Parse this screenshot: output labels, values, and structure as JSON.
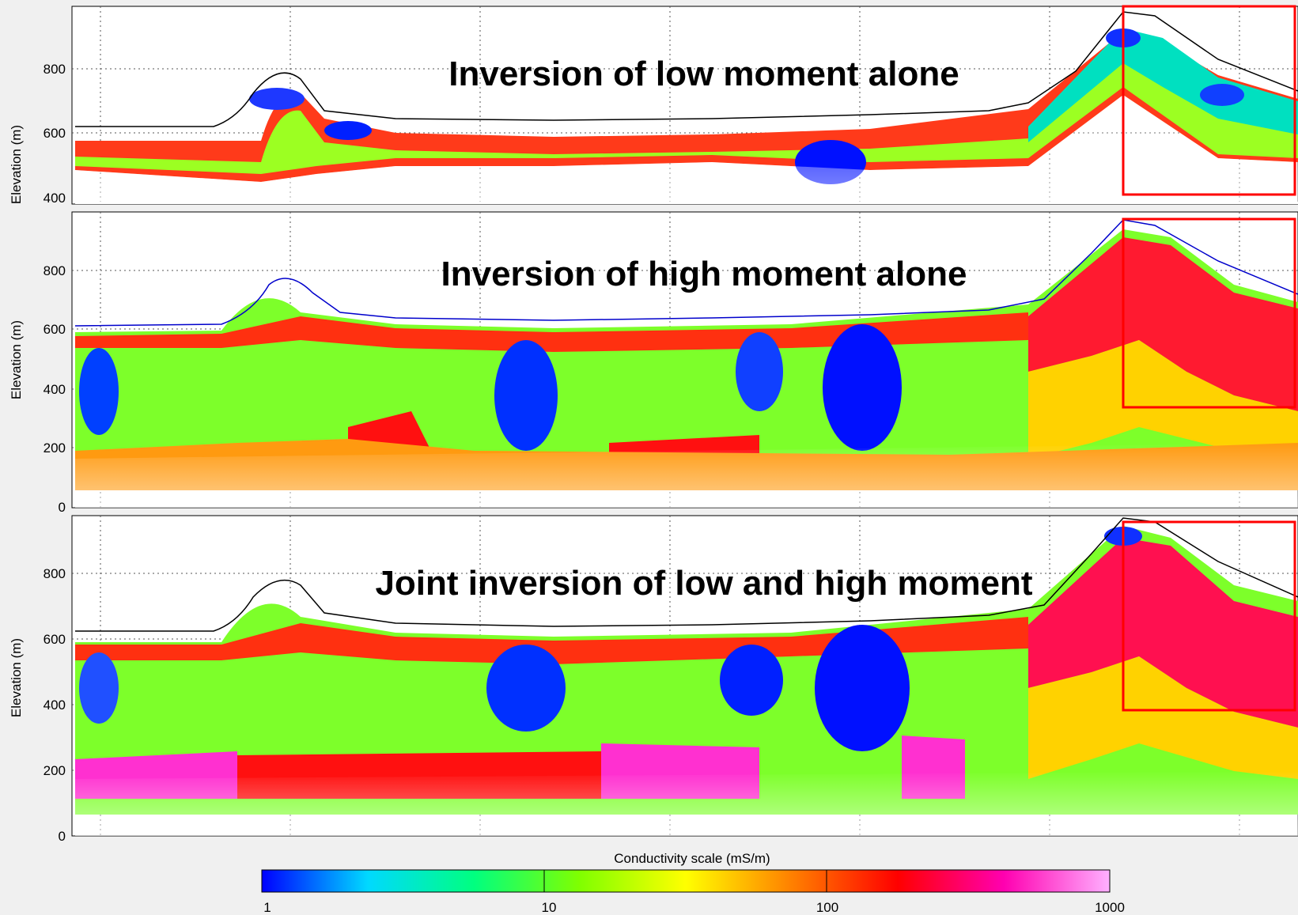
{
  "chart_data": [
    {
      "type": "heatmap",
      "title": "Inversion of low moment alone",
      "ylabel": "Elevation (m)",
      "ylim": [
        380,
        1050
      ],
      "yticks": [
        400,
        600,
        800
      ],
      "highlight_box": true
    },
    {
      "type": "heatmap",
      "title": "Inversion of high moment alone",
      "ylabel": "Elevation (m)",
      "ylim": [
        0,
        1050
      ],
      "yticks": [
        0,
        200,
        400,
        600,
        800
      ],
      "highlight_box": true
    },
    {
      "type": "heatmap",
      "title": "Joint inversion of low and high moment",
      "ylabel": "Elevation (m)",
      "ylim": [
        0,
        980
      ],
      "yticks": [
        0,
        200,
        400,
        600,
        800
      ],
      "highlight_box": true
    }
  ],
  "colorbar": {
    "label": "Conductivity scale (mS/m)",
    "scale": "log",
    "ticks": [
      "1",
      "10",
      "100",
      "1000"
    ],
    "colors": [
      "#0000ff",
      "#00d9ff",
      "#00ff80",
      "#80ff00",
      "#ffff00",
      "#ff8000",
      "#ff0000",
      "#ff00b0",
      "#ffb0ff"
    ]
  },
  "colors": {
    "background": "#f0f0f0",
    "panel": "#ffffff",
    "highlight_box": "#ff0000",
    "surface_line": "#000000",
    "surface_line_high_moment": "#0000cc"
  }
}
